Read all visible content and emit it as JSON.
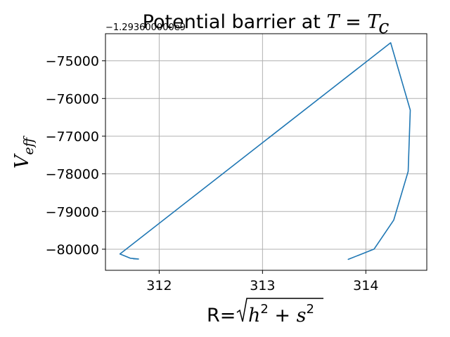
{
  "chart_data": {
    "type": "line",
    "title": "Potential barrier at T = T_c",
    "title_parts": {
      "prefix": "Potential barrier at ",
      "var1": "T",
      "eq": " = ",
      "var2": "T",
      "sub": "c"
    },
    "xlabel": "R=√(h² + s²)",
    "xlabel_parts": {
      "prefix": "R=",
      "radicand_h": "h",
      "plus": " + ",
      "radicand_s": "s",
      "sup": "2"
    },
    "ylabel": "V_eff",
    "ylabel_parts": {
      "base": "V",
      "sub": "eff"
    },
    "y_offset_text": "−1.293600000e9",
    "xlim": [
      311.48,
      314.59
    ],
    "ylim": [
      -80560,
      -74280
    ],
    "xticks": [
      312,
      313,
      314
    ],
    "yticks": [
      -80000,
      -79000,
      -78000,
      -77000,
      -76000,
      -75000
    ],
    "xtick_labels": [
      "312",
      "313",
      "314"
    ],
    "ytick_labels": [
      "−80000",
      "−79000",
      "−78000",
      "−77000",
      "−76000",
      "−75000"
    ],
    "grid": true,
    "series": [
      {
        "color": "#1f77b4",
        "x": [
          313.83,
          314.08,
          314.27,
          314.41,
          314.43,
          314.24,
          311.62,
          311.72,
          311.8,
          311.75
        ],
        "y": [
          -80270,
          -79995,
          -79225,
          -77935,
          -76310,
          -74520,
          -80125,
          -80240,
          -80260,
          -80255
        ]
      }
    ]
  }
}
